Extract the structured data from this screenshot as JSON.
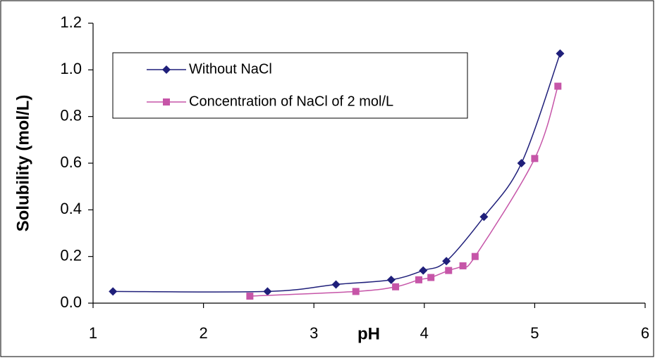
{
  "chart_data": {
    "type": "line",
    "x_label": "pH",
    "y_label": "Solubility (mol/L)",
    "xlim": [
      1,
      6
    ],
    "xticks": [
      1,
      2,
      3,
      4,
      5,
      6
    ],
    "ylim": [
      0,
      1.2
    ],
    "yticks": [
      {
        "value": 0,
        "label": "0.0"
      },
      0.2,
      0.4,
      0.6,
      0.8,
      {
        "value": 1,
        "label": "1.0"
      },
      1.2
    ],
    "grid": false,
    "legend": "upper left",
    "series": [
      {
        "name": "Without NaCl",
        "color": "#1f1f7a",
        "marker": "diamond",
        "x": [
          1.18,
          2.58,
          3.2,
          3.7,
          3.99,
          4.2,
          4.54,
          4.88,
          5.23
        ],
        "values": [
          0.05,
          0.05,
          0.08,
          0.1,
          0.14,
          0.18,
          0.37,
          0.6,
          1.07
        ]
      },
      {
        "name": "Concentration of NaCl of 2 mol/L",
        "color": "#c655a8",
        "marker": "square",
        "x": [
          2.42,
          3.38,
          3.74,
          3.95,
          4.06,
          4.22,
          4.35,
          4.46,
          5.0,
          5.21
        ],
        "values": [
          0.03,
          0.05,
          0.07,
          0.1,
          0.11,
          0.14,
          0.16,
          0.2,
          0.62,
          0.93
        ]
      }
    ]
  }
}
